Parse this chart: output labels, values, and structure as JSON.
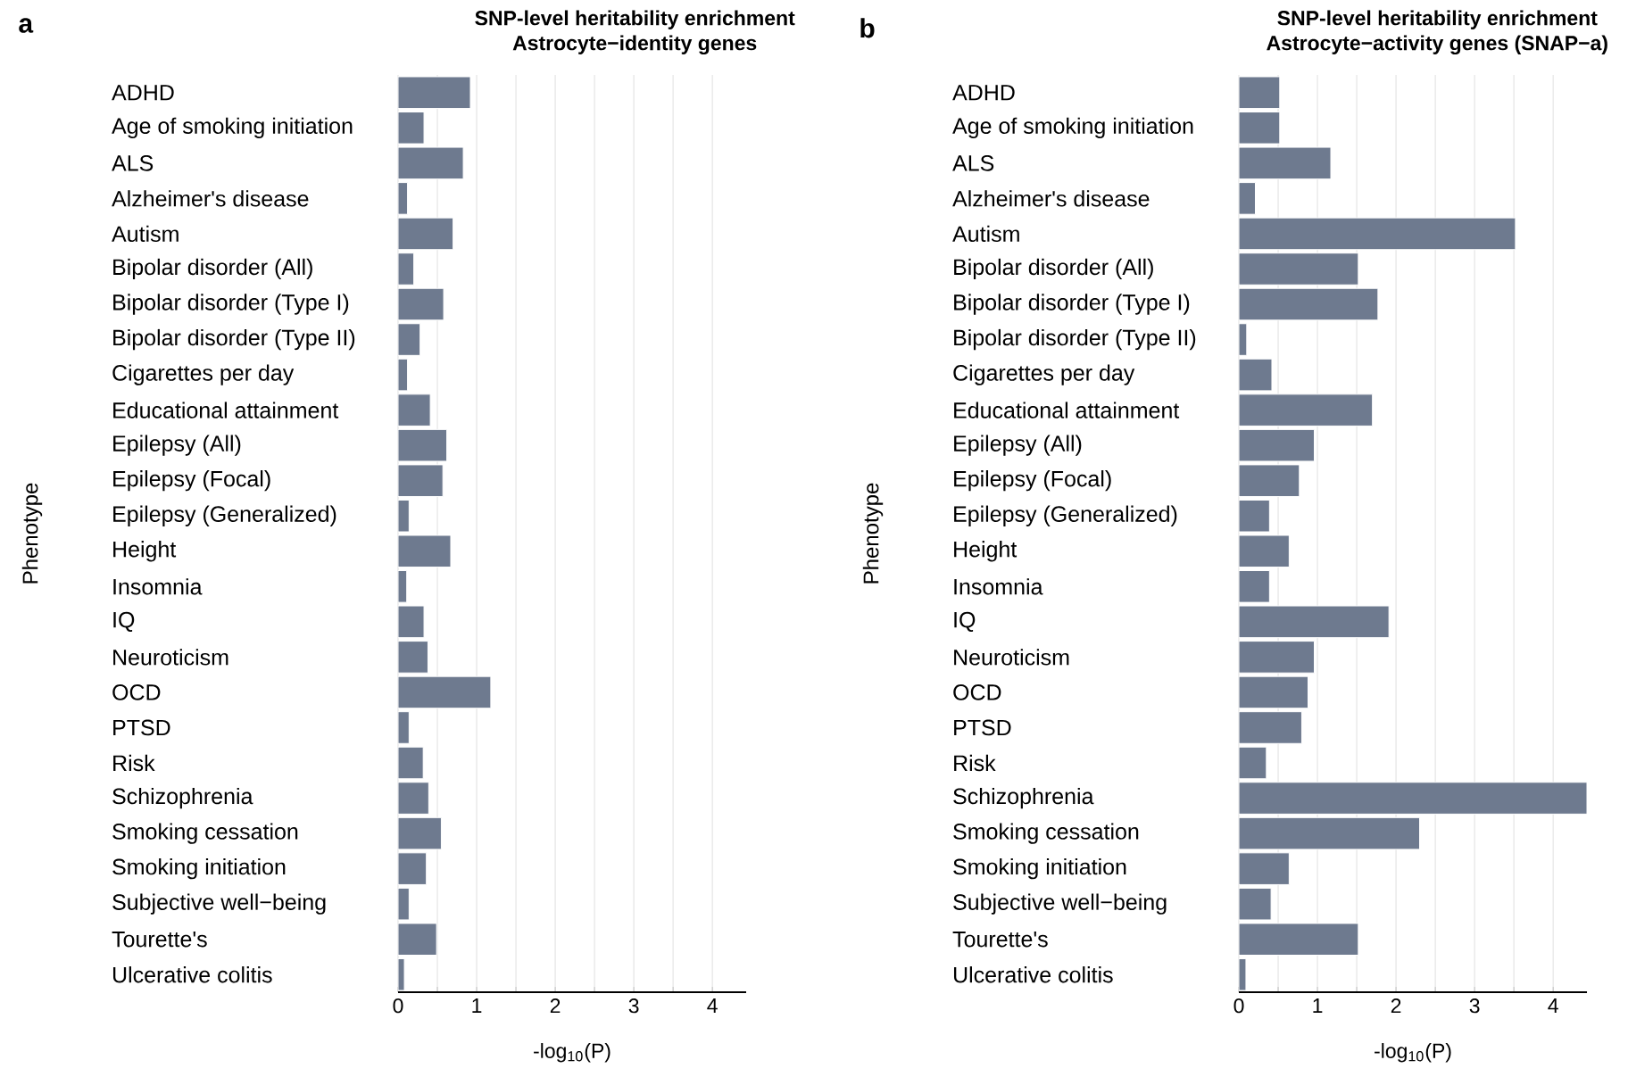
{
  "chart_data": [
    {
      "type": "bar",
      "orientation": "horizontal",
      "title": "SNP-level heritability enrichment",
      "subtitle": "Astrocyte−identity genes",
      "xlabel": "-log$_{10}$(P)",
      "ylabel": "Phenotype",
      "annotations": [
        "a"
      ],
      "categories": [
        "ADHD",
        "Age of smoking initiation",
        "ALS",
        "Alzheimer's disease",
        "Autism",
        "Bipolar disorder (All)",
        "Bipolar disorder (Type I)",
        "Bipolar disorder (Type II)",
        "Cigarettes per day",
        "Educational attainment",
        "Epilepsy (All)",
        "Epilepsy (Focal)",
        "Epilepsy (Generalized)",
        "Height",
        "Insomnia",
        "IQ",
        "Neuroticism",
        "OCD",
        "PTSD",
        "Risk",
        "Schizophrenia",
        "Smoking cessation",
        "Smoking initiation",
        "Subjective well−being",
        "Tourette's",
        "Ulcerative colitis"
      ],
      "values": [
        0.92,
        0.33,
        0.83,
        0.12,
        0.7,
        0.2,
        0.58,
        0.28,
        0.12,
        0.41,
        0.62,
        0.57,
        0.14,
        0.67,
        0.11,
        0.33,
        0.38,
        1.18,
        0.14,
        0.32,
        0.39,
        0.55,
        0.36,
        0.14,
        0.49,
        0.08
      ],
      "color": "#6e7a8f",
      "xlim": [
        0,
        4.43
      ],
      "xticks": [
        0,
        {
          "value": 0.5,
          "label": null
        },
        1,
        {
          "value": 1.5,
          "label": null
        },
        2,
        {
          "value": 2.5,
          "label": null
        },
        3,
        {
          "value": 3.5,
          "label": null
        },
        4
      ],
      "grid": "x"
    },
    {
      "type": "bar",
      "orientation": "horizontal",
      "title": "SNP-level heritability enrichment",
      "subtitle": "Astrocyte−activity genes (SNAP−a)",
      "xlabel": "-log$_{10}$(P)",
      "ylabel": "Phenotype",
      "annotations": [
        "b"
      ],
      "categories": [
        "ADHD",
        "Age of smoking initiation",
        "ALS",
        "Alzheimer's disease",
        "Autism",
        "Bipolar disorder (All)",
        "Bipolar disorder (Type I)",
        "Bipolar disorder (Type II)",
        "Cigarettes per day",
        "Educational attainment",
        "Epilepsy (All)",
        "Epilepsy (Focal)",
        "Epilepsy (Generalized)",
        "Height",
        "Insomnia",
        "IQ",
        "Neuroticism",
        "OCD",
        "PTSD",
        "Risk",
        "Schizophrenia",
        "Smoking cessation",
        "Smoking initiation",
        "Subjective well−being",
        "Tourette's",
        "Ulcerative colitis"
      ],
      "values": [
        0.52,
        0.52,
        1.17,
        0.21,
        3.52,
        1.52,
        1.77,
        0.1,
        0.42,
        1.7,
        0.96,
        0.77,
        0.39,
        0.64,
        0.39,
        1.91,
        0.96,
        0.88,
        0.8,
        0.35,
        4.43,
        2.3,
        0.64,
        0.41,
        1.52,
        0.09
      ],
      "color": "#6e7a8f",
      "xlim": [
        0,
        4.43
      ],
      "xticks": [
        0,
        {
          "value": 0.5,
          "label": null
        },
        1,
        {
          "value": 1.5,
          "label": null
        },
        2,
        {
          "value": 2.5,
          "label": null
        },
        3,
        {
          "value": 3.5,
          "label": null
        },
        4
      ],
      "grid": "x"
    }
  ]
}
